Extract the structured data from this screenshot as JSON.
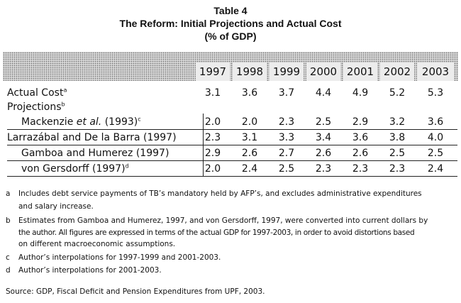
{
  "title": {
    "line1": "Table 4",
    "line2": "The Reform: Initial Projections and Actual Cost",
    "line3": "(% of GDP)"
  },
  "years": [
    "1997",
    "1998",
    "1999",
    "2000",
    "2001",
    "2002",
    "2003"
  ],
  "rows": {
    "actual": {
      "label": "Actual Cost",
      "sup": "a",
      "values": [
        "3.1",
        "3.6",
        "3.7",
        "4.4",
        "4.9",
        "5.2",
        "5.3"
      ]
    },
    "projections": {
      "label": "Projections",
      "sup": "b"
    },
    "mackenzie": {
      "label_pre": "Mackenzie ",
      "label_em": "et al.",
      "label_post": " (1993)",
      "sup": "c",
      "values": [
        "2.0",
        "2.0",
        "2.3",
        "2.5",
        "2.9",
        "3.2",
        "3.6"
      ]
    },
    "larrazabal": {
      "label": "Larrazábal and De la Barra (1997)",
      "values": [
        "2.3",
        "3.1",
        "3.3",
        "3.4",
        "3.6",
        "3.8",
        "4.0"
      ]
    },
    "gamboa": {
      "label": "Gamboa and Humerez (1997)",
      "values": [
        "2.9",
        "2.6",
        "2.7",
        "2.6",
        "2.6",
        "2.5",
        "2.5"
      ]
    },
    "gersdorff": {
      "label": "von Gersdorff (1997)",
      "sup": "d",
      "values": [
        "2.0",
        "2.4",
        "2.5",
        "2.3",
        "2.3",
        "2.3",
        "2.4"
      ]
    }
  },
  "notes": {
    "a": {
      "letter": "a",
      "line1": "Includes debt service payments of TB’s mandatory held by AFP’s, and excludes administrative expenditures",
      "line2": "and salary increase."
    },
    "b": {
      "letter": "b",
      "line1": "Estimates from Gamboa and Humerez, 1997, and von Gersdorff, 1997, were converted into current dollars by",
      "line2": "the author. All figures are expressed in terms of the actual GDP for 1997-2003, in order to avoid distortions based",
      "line3": "on different macroeconomic assumptions."
    },
    "c": {
      "letter": "c",
      "line1": "Author’s interpolations for 1997-1999 and 2001-2003."
    },
    "d": {
      "letter": "d",
      "line1": "Author’s interpolations for 2001-2003."
    }
  },
  "source": "Source:  GDP, Fiscal Deficit and Pension Expenditures from UPF, 2003."
}
